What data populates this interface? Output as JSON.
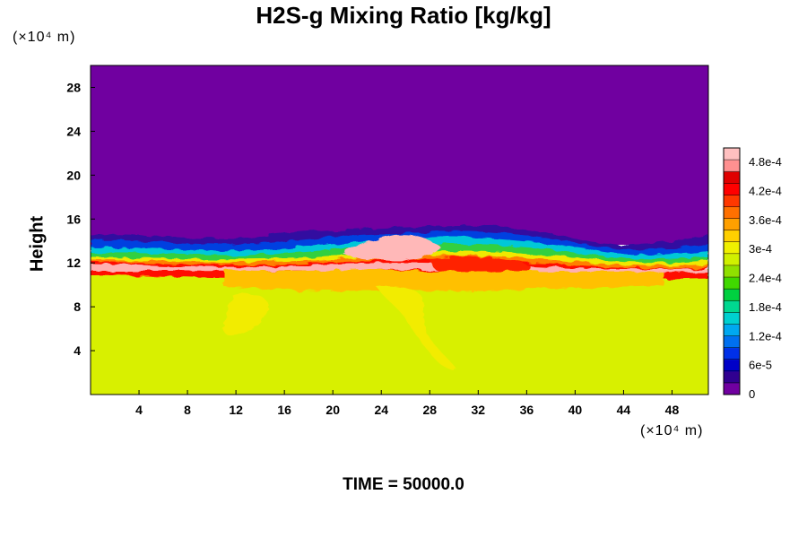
{
  "chart_data": {
    "type": "heatmap",
    "title": "H2S-g Mixing Ratio [kg/kg]",
    "ylabel": "Height",
    "xlabel": "",
    "y_unit": "(×10⁴ m)",
    "x_unit": "(×10⁴ m)",
    "footer": "TIME = 50000.0",
    "xlim": [
      0,
      51
    ],
    "ylim": [
      0,
      30
    ],
    "x_ticks": [
      "4",
      "8",
      "12",
      "16",
      "20",
      "24",
      "28",
      "32",
      "36",
      "40",
      "44",
      "48"
    ],
    "y_ticks": [
      "4",
      "8",
      "12",
      "16",
      "20",
      "24",
      "28"
    ],
    "colorbar": {
      "vmin": 0,
      "vmax": 0.00051,
      "labels": [
        {
          "text": "0",
          "value": 0
        },
        {
          "text": "6e-5",
          "value": 6e-05
        },
        {
          "text": "1.2e-4",
          "value": 0.00012
        },
        {
          "text": "1.8e-4",
          "value": 0.00018
        },
        {
          "text": "2.4e-4",
          "value": 0.00024
        },
        {
          "text": "3e-4",
          "value": 0.0003
        },
        {
          "text": "3.6e-4",
          "value": 0.00036
        },
        {
          "text": "4.2e-4",
          "value": 0.00042
        },
        {
          "text": "4.8e-4",
          "value": 0.00048
        }
      ],
      "colors": [
        "#7000a0",
        "#300090",
        "#0000c8",
        "#0030e8",
        "#0070f0",
        "#00a8f0",
        "#00d0d0",
        "#00d890",
        "#00d040",
        "#40d800",
        "#90e000",
        "#d0f000",
        "#f0f000",
        "#ffd000",
        "#ffa000",
        "#ff7000",
        "#ff3800",
        "#ff0000",
        "#e00000",
        "#ff9090",
        "#ffc0c0"
      ]
    },
    "background_values": {
      "upper_layer": 0,
      "lower_layer": 0.00034
    }
  }
}
